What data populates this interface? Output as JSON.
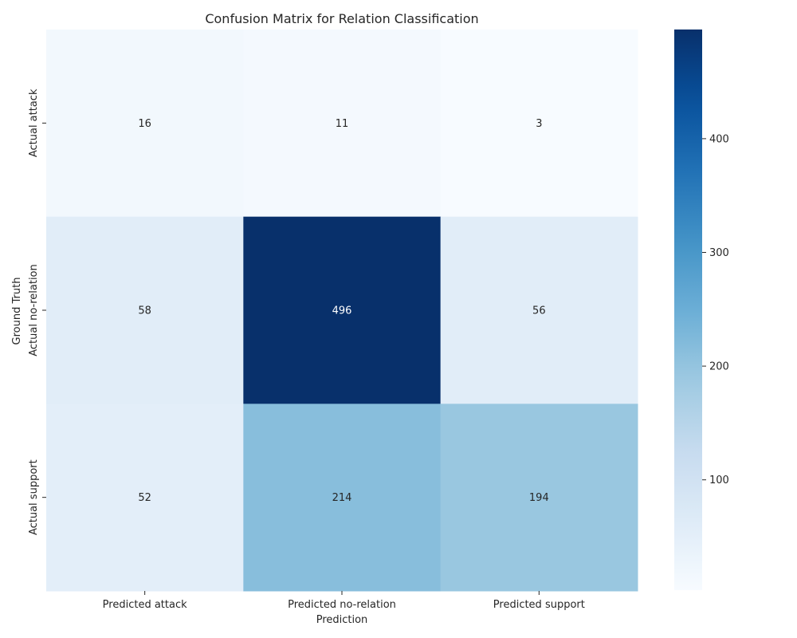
{
  "chart_data": {
    "type": "heatmap",
    "title": "Confusion Matrix for Relation Classification",
    "xlabel": "Prediction",
    "ylabel": "Ground Truth",
    "x_categories": [
      "Predicted attack",
      "Predicted no-relation",
      "Predicted support"
    ],
    "y_categories": [
      "Actual attack",
      "Actual no-relation",
      "Actual support"
    ],
    "values": [
      [
        16,
        11,
        3
      ],
      [
        58,
        496,
        56
      ],
      [
        52,
        214,
        194
      ]
    ],
    "colormap": "Blues",
    "vmin": 3,
    "vmax": 496,
    "colorbar_ticks": [
      100,
      200,
      300,
      400
    ],
    "colorbar_tick_labels": [
      "100",
      "200",
      "300",
      "400"
    ]
  }
}
